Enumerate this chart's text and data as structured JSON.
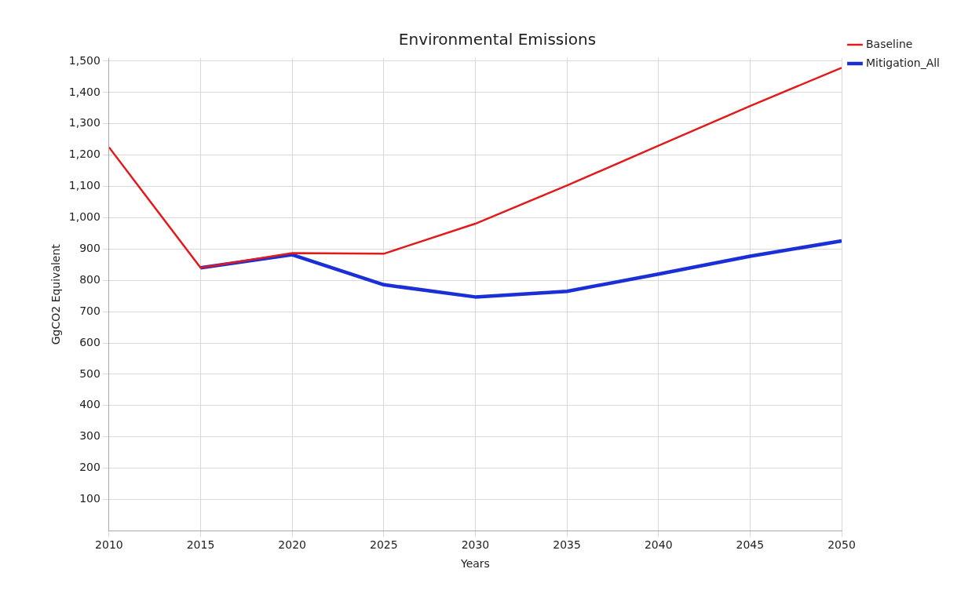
{
  "chart_data": {
    "type": "line",
    "title": "Environmental Emissions",
    "xlabel": "Years",
    "ylabel": "GgCO2 Equivalent",
    "x": [
      2010,
      2015,
      2020,
      2025,
      2030,
      2035,
      2040,
      2045,
      2050
    ],
    "series": [
      {
        "name": "Baseline",
        "color": "#e31a1c",
        "values": [
          1225,
          840,
          887,
          885,
          981,
          1103,
          1230,
          1357,
          1479
        ]
      },
      {
        "name": "Mitigation_All",
        "color": "#1a2fd6",
        "values": [
          null,
          840,
          882,
          786,
          747,
          765,
          820,
          877,
          926
        ]
      }
    ],
    "xlim": [
      2010,
      2050
    ],
    "xticks": [
      2010,
      2015,
      2020,
      2025,
      2030,
      2035,
      2040,
      2045,
      2050
    ],
    "ylim": [
      0,
      1510
    ],
    "yticks": [
      100,
      200,
      300,
      400,
      500,
      600,
      700,
      800,
      900,
      {
        "value": 1000,
        "label": "1,000"
      },
      {
        "value": 1100,
        "label": "1,100"
      },
      {
        "value": 1200,
        "label": "1,200"
      },
      {
        "value": 1300,
        "label": "1,300"
      },
      {
        "value": 1400,
        "label": "1,400"
      },
      {
        "value": 1500,
        "label": "1,500"
      }
    ],
    "grid": true,
    "legend": "top right",
    "marker": "none",
    "line_style": "solid"
  }
}
